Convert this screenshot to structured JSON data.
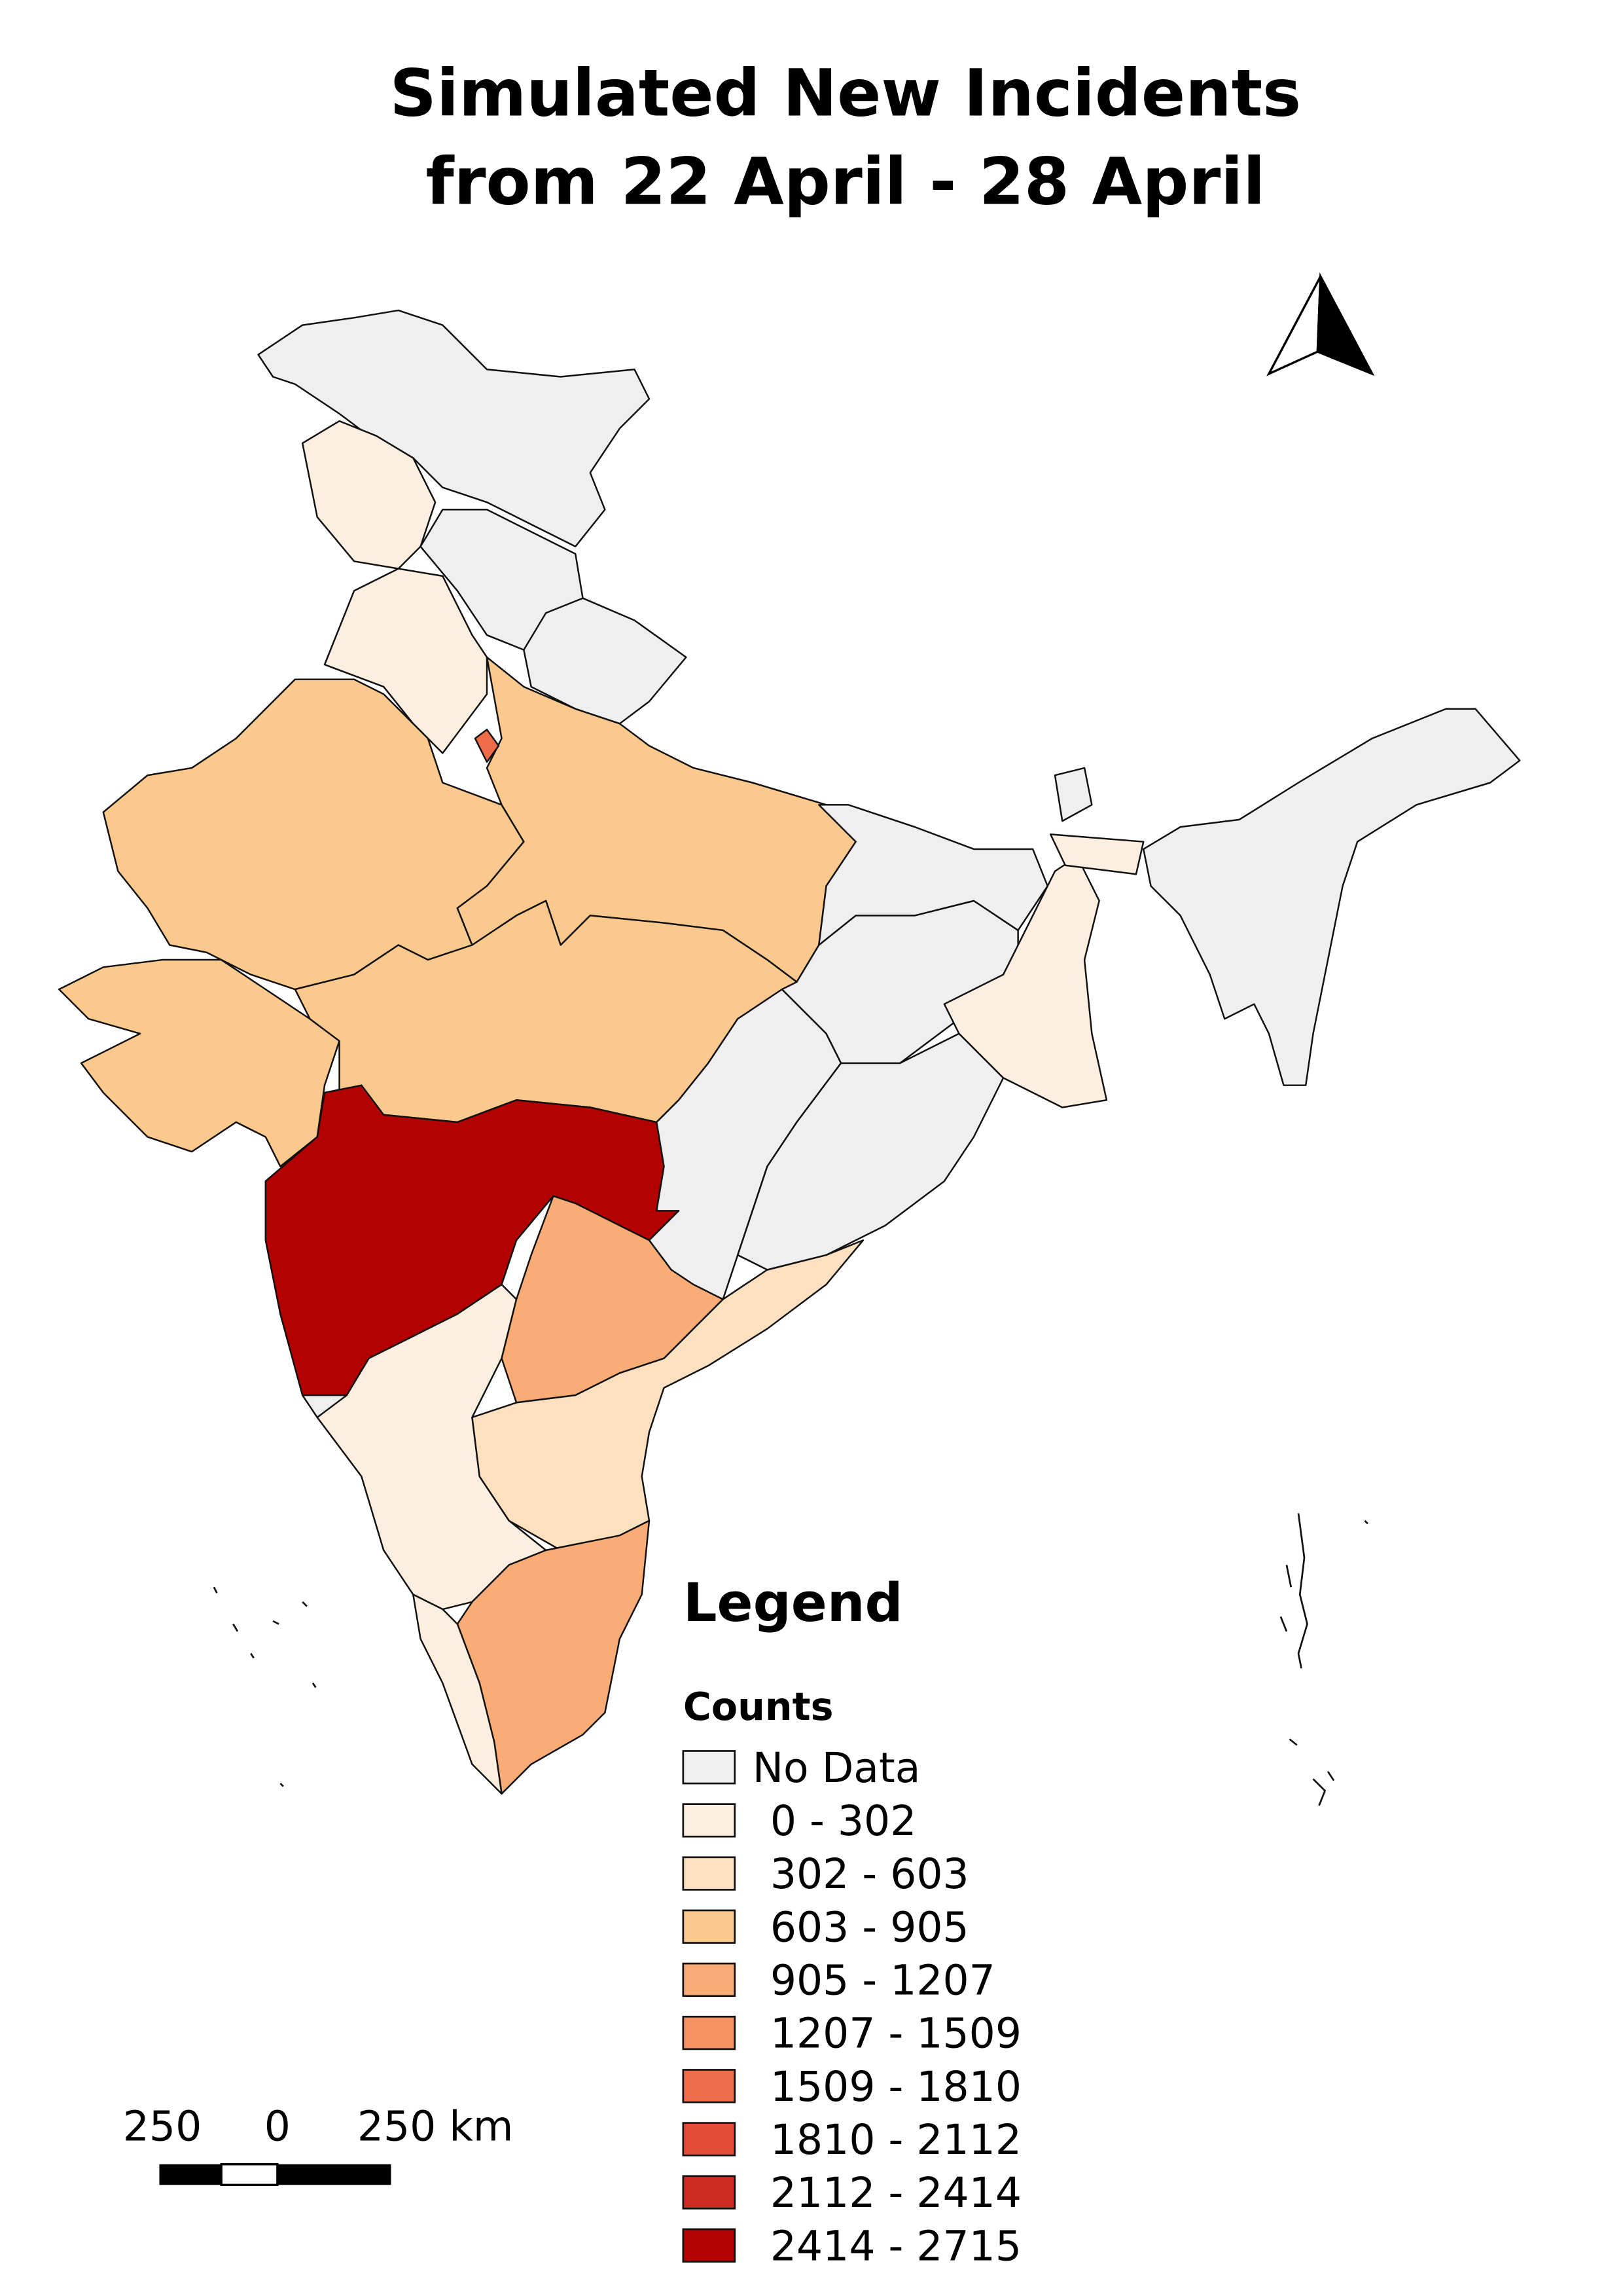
{
  "title_lines": [
    "Simulated New Incidents",
    "from 22 April - 28 April"
  ],
  "legend": {
    "title": "Legend",
    "subtitle": "Counts",
    "items": [
      {
        "label": "No Data",
        "color": "#eeefee"
      },
      {
        "label": "0 - 302",
        "color": "#fdefe0"
      },
      {
        "label": "302 - 603",
        "color": "#fde0c0"
      },
      {
        "label": "603 - 905",
        "color": "#fbc88e"
      },
      {
        "label": "905 - 1207",
        "color": "#f9ac76"
      },
      {
        "label": "1207 - 1509",
        "color": "#f69262"
      },
      {
        "label": "1509 - 1810",
        "color": "#ef6c48"
      },
      {
        "label": "1810 - 2112",
        "color": "#e24e37"
      },
      {
        "label": "2112 - 2414",
        "color": "#cb2d22"
      },
      {
        "label": "2414 - 2715",
        "color": "#b30000"
      }
    ]
  },
  "scale_bar": {
    "labels": [
      "250",
      "0",
      "250 km"
    ]
  }
}
